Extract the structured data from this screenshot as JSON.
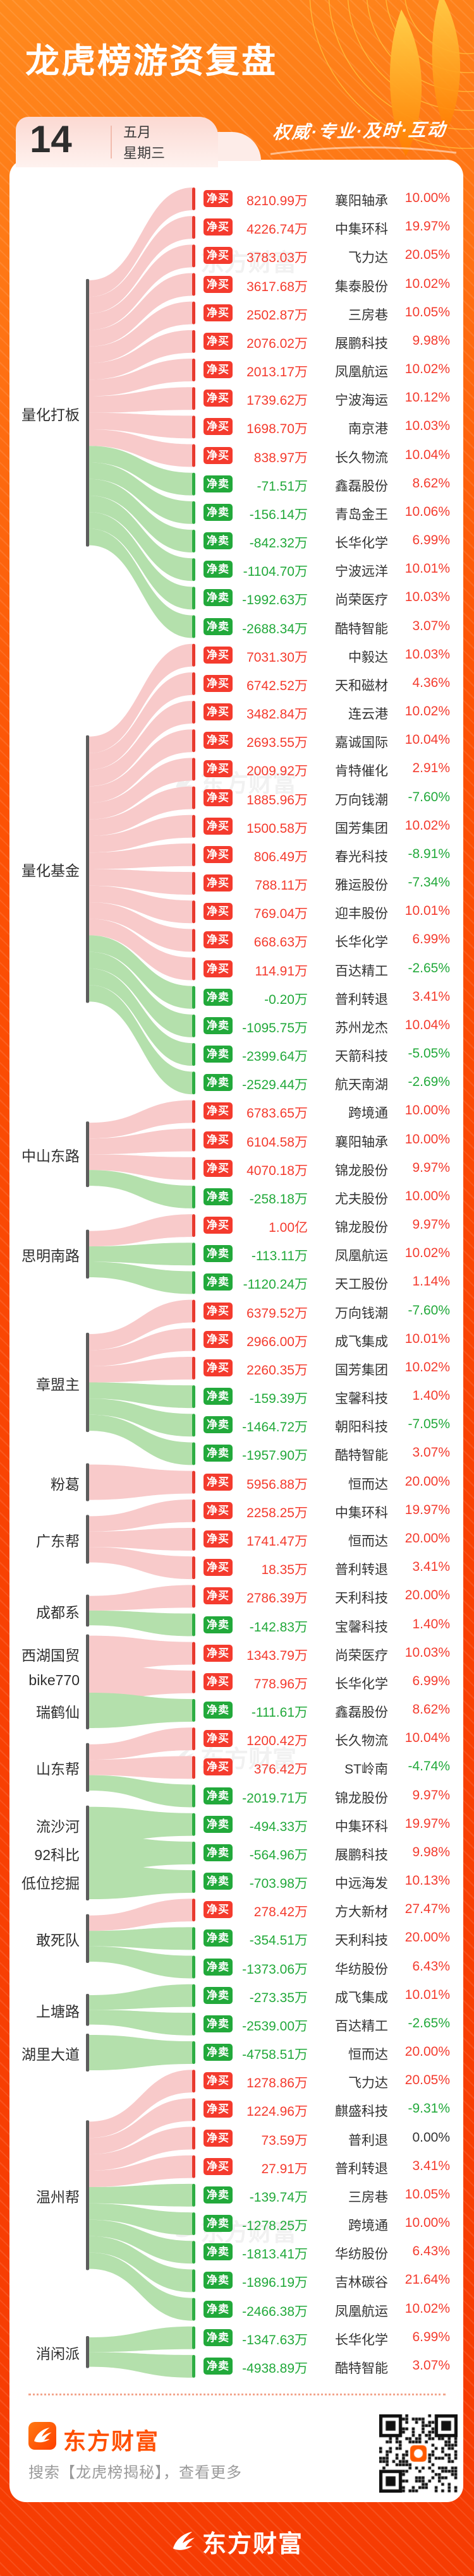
{
  "header": {
    "title": "龙虎榜游资复盘",
    "slogan": "权威·专业·及时·互动",
    "date": {
      "day": "14",
      "month": "五月",
      "weekday": "星期三"
    }
  },
  "chart_data": {
    "type": "sankey",
    "badge_buy": "净买",
    "badge_sell": "净卖",
    "groups": [
      {
        "name": "量化打板",
        "rows": [
          [
            "8210.99万",
            "襄阳轴承",
            "10.00%"
          ],
          [
            "4226.74万",
            "中集环科",
            "19.97%"
          ],
          [
            "3783.03万",
            "飞力达",
            "20.05%"
          ],
          [
            "3617.68万",
            "集泰股份",
            "10.02%"
          ],
          [
            "2502.87万",
            "三房巷",
            "10.05%"
          ],
          [
            "2076.02万",
            "展鹏科技",
            "9.98%"
          ],
          [
            "2013.17万",
            "凤凰航运",
            "10.02%"
          ],
          [
            "1739.62万",
            "宁波海运",
            "10.12%"
          ],
          [
            "1698.70万",
            "南京港",
            "10.03%"
          ],
          [
            "838.97万",
            "长久物流",
            "10.04%"
          ],
          [
            "-71.51万",
            "鑫磊股份",
            "8.62%"
          ],
          [
            "-156.14万",
            "青岛金王",
            "10.06%"
          ],
          [
            "-842.32万",
            "长华化学",
            "6.99%"
          ],
          [
            "-1104.70万",
            "宁波远洋",
            "10.01%"
          ],
          [
            "-1992.63万",
            "尚荣医疗",
            "10.03%"
          ],
          [
            "-2688.34万",
            "酷特智能",
            "3.07%"
          ]
        ]
      },
      {
        "name": "量化基金",
        "rows": [
          [
            "7031.30万",
            "中毅达",
            "10.03%"
          ],
          [
            "6742.52万",
            "天和磁材",
            "4.36%"
          ],
          [
            "3482.84万",
            "连云港",
            "10.02%"
          ],
          [
            "2693.55万",
            "嘉诚国际",
            "10.04%"
          ],
          [
            "2009.92万",
            "肯特催化",
            "2.91%"
          ],
          [
            "1885.96万",
            "万向钱潮",
            "-7.60%"
          ],
          [
            "1500.58万",
            "国芳集团",
            "10.02%"
          ],
          [
            "806.49万",
            "春光科技",
            "-8.91%"
          ],
          [
            "788.11万",
            "雅运股份",
            "-7.34%"
          ],
          [
            "769.04万",
            "迎丰股份",
            "10.01%"
          ],
          [
            "668.63万",
            "长华化学",
            "6.99%"
          ],
          [
            "114.91万",
            "百达精工",
            "-2.65%"
          ],
          [
            "-0.20万",
            "普利转退",
            "3.41%"
          ],
          [
            "-1095.75万",
            "苏州龙杰",
            "10.04%"
          ],
          [
            "-2399.64万",
            "天箭科技",
            "-5.05%"
          ],
          [
            "-2529.44万",
            "航天南湖",
            "-2.69%"
          ]
        ]
      },
      {
        "name": "中山东路",
        "rows": [
          [
            "6783.65万",
            "跨境通",
            "10.00%"
          ],
          [
            "6104.58万",
            "襄阳轴承",
            "10.00%"
          ],
          [
            "4070.18万",
            "锦龙股份",
            "9.97%"
          ],
          [
            "-258.18万",
            "尤夫股份",
            "10.00%"
          ]
        ]
      },
      {
        "name": "思明南路",
        "rows": [
          [
            "1.00亿",
            "锦龙股份",
            "9.97%"
          ],
          [
            "-113.11万",
            "凤凰航运",
            "10.02%"
          ],
          [
            "-1120.24万",
            "天工股份",
            "1.14%"
          ]
        ]
      },
      {
        "name": "章盟主",
        "rows": [
          [
            "6379.52万",
            "万向钱潮",
            "-7.60%"
          ],
          [
            "2966.00万",
            "成飞集成",
            "10.01%"
          ],
          [
            "2260.35万",
            "国芳集团",
            "10.02%"
          ],
          [
            "-159.39万",
            "宝馨科技",
            "1.40%"
          ],
          [
            "-1464.72万",
            "朝阳科技",
            "-7.05%"
          ],
          [
            "-1957.90万",
            "酷特智能",
            "3.07%"
          ]
        ]
      },
      {
        "name": "粉葛",
        "rows": [
          [
            "5956.88万",
            "恒而达",
            "20.00%"
          ]
        ]
      },
      {
        "name": "广东帮",
        "rows": [
          [
            "2258.25万",
            "中集环科",
            "19.97%"
          ],
          [
            "1741.47万",
            "恒而达",
            "20.00%"
          ],
          [
            "18.35万",
            "普利转退",
            "3.41%"
          ]
        ]
      },
      {
        "name": "成都系",
        "rows": [
          [
            "2786.39万",
            "天利科技",
            "20.00%"
          ],
          [
            "-142.83万",
            "宝馨科技",
            "1.40%"
          ]
        ]
      },
      {
        "name": "西湖国贸",
        "rows": [
          [
            "1343.79万",
            "尚荣医疗",
            "10.03%"
          ]
        ]
      },
      {
        "name": "bike770",
        "rows": [
          [
            "778.96万",
            "长华化学",
            "6.99%"
          ]
        ]
      },
      {
        "name": "瑞鹤仙",
        "rows": [
          [
            "-111.61万",
            "鑫磊股份",
            "8.62%"
          ]
        ]
      },
      {
        "name": "山东帮",
        "rows": [
          [
            "1200.42万",
            "长久物流",
            "10.04%"
          ],
          [
            "376.42万",
            "ST岭南",
            "-4.74%"
          ],
          [
            "-2019.71万",
            "锦龙股份",
            "9.97%"
          ]
        ]
      },
      {
        "name": "流沙河",
        "rows": [
          [
            "-494.33万",
            "中集环科",
            "19.97%"
          ]
        ]
      },
      {
        "name": "92科比",
        "rows": [
          [
            "-564.96万",
            "展鹏科技",
            "9.98%"
          ]
        ]
      },
      {
        "name": "低位挖掘",
        "rows": [
          [
            "-703.98万",
            "中远海发",
            "10.13%"
          ]
        ]
      },
      {
        "name": "敢死队",
        "rows": [
          [
            "278.42万",
            "方大新材",
            "27.47%"
          ],
          [
            "-354.51万",
            "天利科技",
            "20.00%"
          ],
          [
            "-1373.06万",
            "华纺股份",
            "6.43%"
          ]
        ]
      },
      {
        "name": "上塘路",
        "rows": [
          [
            "-273.35万",
            "成飞集成",
            "10.01%"
          ],
          [
            "-2539.00万",
            "百达精工",
            "-2.65%"
          ]
        ]
      },
      {
        "name": "湖里大道",
        "rows": [
          [
            "-4758.51万",
            "恒而达",
            "20.00%"
          ]
        ]
      },
      {
        "name": "温州帮",
        "rows": [
          [
            "1278.86万",
            "飞力达",
            "20.05%"
          ],
          [
            "1224.96万",
            "麒盛科技",
            "-9.31%"
          ],
          [
            "73.59万",
            "普利退",
            "0.00%"
          ],
          [
            "27.91万",
            "普利转退",
            "3.41%"
          ],
          [
            "-139.74万",
            "三房巷",
            "10.05%"
          ],
          [
            "-1278.25万",
            "跨境通",
            "10.00%"
          ],
          [
            "-1813.41万",
            "华纺股份",
            "6.43%"
          ],
          [
            "-1896.19万",
            "吉林碳谷",
            "21.64%"
          ],
          [
            "-2466.38万",
            "凤凰航运",
            "10.02%"
          ]
        ]
      },
      {
        "name": "消闲派",
        "rows": [
          [
            "-1347.63万",
            "长华化学",
            "6.99%"
          ],
          [
            "-4938.89万",
            "酷特智能",
            "3.07%"
          ]
        ]
      }
    ]
  },
  "watermark_text": "东方财富",
  "footer": {
    "brand_name": "东方财富",
    "search_tip": "搜索【龙虎榜揭秘】，查看更多",
    "bottom_brand": "东方财富"
  },
  "colors": {
    "buy": "#f43b2e",
    "sell": "#22a93b",
    "flow_buy": "#f8caca",
    "flow_sell": "#b4e0ac",
    "tick_buy": "#e83a2f",
    "tick_sell": "#2fae44",
    "bar": "#5c5c5c",
    "text_dark": "#333333",
    "flat": "#333333"
  }
}
